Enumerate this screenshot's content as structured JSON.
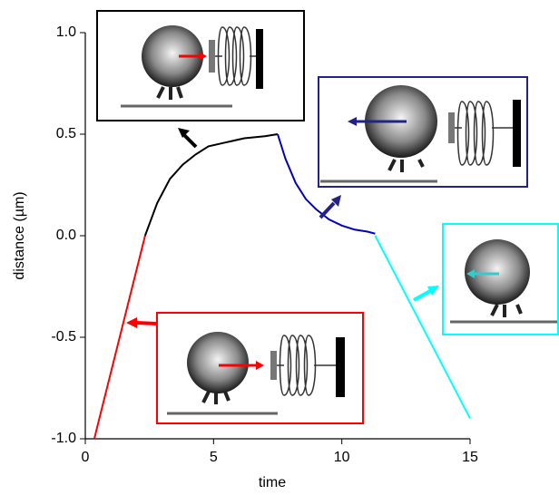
{
  "chart_data": {
    "type": "line",
    "x_label": "time",
    "y_label": "distance (µm)",
    "xlim": [
      0,
      15
    ],
    "xticks": [
      0,
      5,
      10,
      15
    ],
    "ylim": [
      -1,
      1
    ],
    "yticks": [
      {
        "value": 1,
        "label": "1.0"
      },
      {
        "value": 0.5,
        "label": "0.5"
      },
      {
        "value": 0,
        "label": "0.0"
      },
      {
        "value": -0.5,
        "label": "-0.5"
      },
      {
        "value": -1,
        "label": "-1.0"
      }
    ],
    "grid": false,
    "series": [
      {
        "color": "#ff0000",
        "x": [
          0.35,
          2.33
        ],
        "values": [
          -1,
          0
        ]
      },
      {
        "color": "#000000",
        "x": [
          2.33,
          2.8,
          3.3,
          3.8,
          4.3,
          4.8,
          5.5,
          6.2,
          7.0,
          7.5
        ],
        "values": [
          0,
          0.16,
          0.28,
          0.35,
          0.4,
          0.44,
          0.46,
          0.48,
          0.49,
          0.5
        ]
      },
      {
        "color": "#0000c0",
        "x": [
          7.5,
          7.8,
          8.2,
          8.6,
          9.0,
          9.5,
          10.0,
          10.5,
          11.0,
          11.3
        ],
        "values": [
          0.5,
          0.38,
          0.26,
          0.18,
          0.13,
          0.08,
          0.05,
          0.03,
          0.02,
          0.01
        ]
      },
      {
        "color": "#00ffff",
        "x": [
          11.3,
          15
        ],
        "values": [
          0,
          -0.9
        ]
      }
    ]
  }
}
